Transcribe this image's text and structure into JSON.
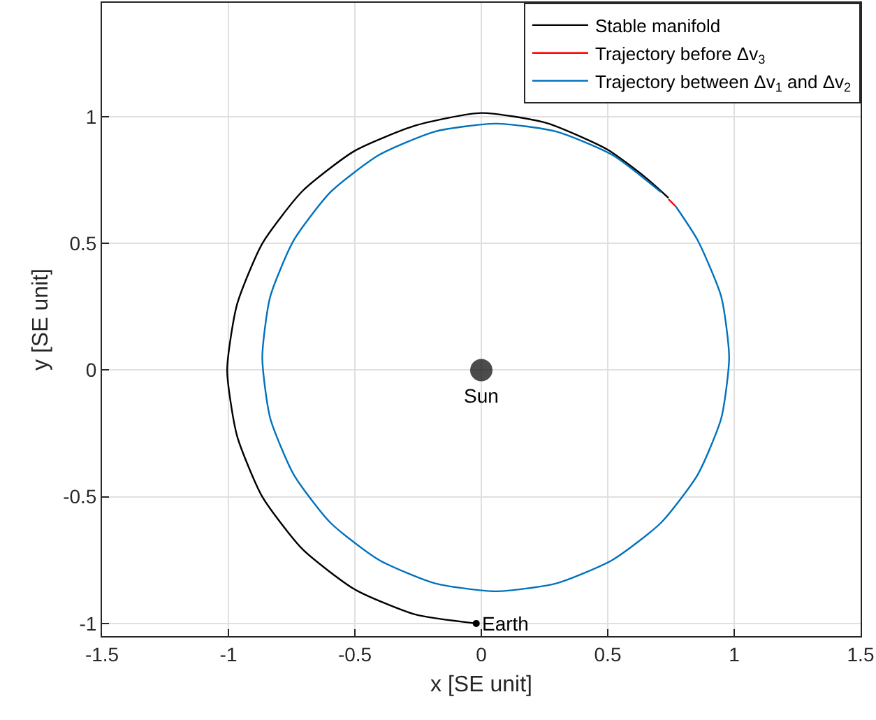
{
  "chart_data": {
    "type": "line",
    "xlabel": "x [SE unit]",
    "ylabel": "y [SE unit]",
    "xlim": [
      -1.5,
      1.5
    ],
    "xticks": [
      -1.5,
      -1,
      -0.5,
      0,
      0.5,
      1,
      1.5
    ],
    "ylim": [
      -1.05,
      1.45
    ],
    "yticks": [
      -1,
      -0.5,
      0,
      0.5,
      1
    ],
    "grid": true,
    "legend": "top right",
    "marker": "none",
    "line_style": "solid",
    "series": [
      {
        "name": "Stable manifold",
        "color": "#000000",
        "x": [
          -0.02,
          -0.26,
          -0.5,
          -0.707,
          -0.866,
          -0.966,
          -1.005,
          -0.966,
          -0.866,
          -0.707,
          -0.5,
          -0.259,
          0,
          0.259,
          0.5,
          0.65,
          0.74
        ],
        "values": [
          -1.0,
          -0.965,
          -0.866,
          -0.707,
          -0.5,
          -0.259,
          0,
          0.259,
          0.5,
          0.707,
          0.866,
          0.966,
          1.015,
          0.975,
          0.87,
          0.76,
          0.68
        ]
      },
      {
        "name": "Trajectory before Δv$_{3}$",
        "color": "#ff0000",
        "x": [
          0.74,
          0.77
        ],
        "values": [
          0.675,
          0.645
        ]
      },
      {
        "name": "Trajectory between Δv$_{1}$ and Δv$_{2}$",
        "color": "#0072bd",
        "x": [
          0.77,
          0.856,
          0.949,
          0.98,
          0.949,
          0.856,
          0.71,
          0.519,
          0.296,
          0.057,
          -0.182,
          -0.405,
          -0.596,
          -0.742,
          -0.835,
          -0.866,
          -0.835,
          -0.742,
          -0.596,
          -0.405,
          -0.182,
          0.057,
          0.296,
          0.519,
          0.71
        ],
        "values": [
          0.645,
          0.512,
          0.289,
          0.05,
          -0.189,
          -0.412,
          -0.603,
          -0.749,
          -0.842,
          -0.873,
          -0.842,
          -0.749,
          -0.603,
          -0.412,
          -0.189,
          0.05,
          0.289,
          0.512,
          0.703,
          0.849,
          0.942,
          0.973,
          0.942,
          0.849,
          0.703
        ]
      },
      {
        "type": "bubble",
        "color": "#000000",
        "x": [
          0
        ],
        "values": [
          0
        ],
        "sizes": [
          1
        ],
        "marker": "circle"
      },
      {
        "type": "scatter",
        "color": "#000000",
        "x": [
          -0.02
        ],
        "values": [
          -1.0
        ],
        "marker": "circle"
      }
    ],
    "annotations": [
      {
        "text": "Sun",
        "x": 0,
        "y": 0
      },
      {
        "text": "Earth",
        "x": -0.02,
        "y": -1.0
      }
    ]
  }
}
